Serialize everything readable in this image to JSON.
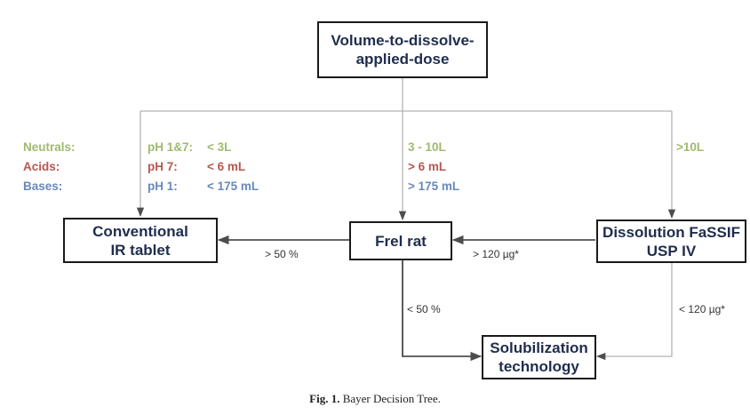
{
  "nodes": {
    "volume": "Volume-to-dissolve-\napplied-dose",
    "conventional": "Conventional\nIR tablet",
    "frel": "Frel rat",
    "dissolution": "Dissolution FaSSIF\nUSP IV",
    "solubilization": "Solubilization\ntechnology"
  },
  "criteria": {
    "labels": {
      "neutrals": "Neutrals:",
      "acids": "Acids:",
      "bases": "Bases:"
    },
    "left_ph": {
      "neutrals": "pH 1&7:",
      "acids": "pH 7:",
      "bases": "pH 1:"
    },
    "left_values": {
      "neutrals": "< 3L",
      "acids": "< 6 mL",
      "bases": "< 175 mL"
    },
    "middle": {
      "neutrals": "3 - 10L",
      "acids": "> 6 mL",
      "bases": "> 175 mL"
    },
    "right": {
      "neutrals": ">10L"
    }
  },
  "edges": {
    "frel_to_conventional": "> 50 %",
    "dissolution_to_frel": "> 120 µg*",
    "frel_to_solubilization": "< 50 %",
    "dissolution_to_solubilization": "< 120 µg*"
  },
  "caption": {
    "label": "Fig. 1.",
    "text": "Bayer Decision Tree."
  },
  "colors": {
    "neutrals": "#9fba6e",
    "acids": "#b8574f",
    "bases": "#6889ba",
    "box_text": "#1f2d4d"
  }
}
